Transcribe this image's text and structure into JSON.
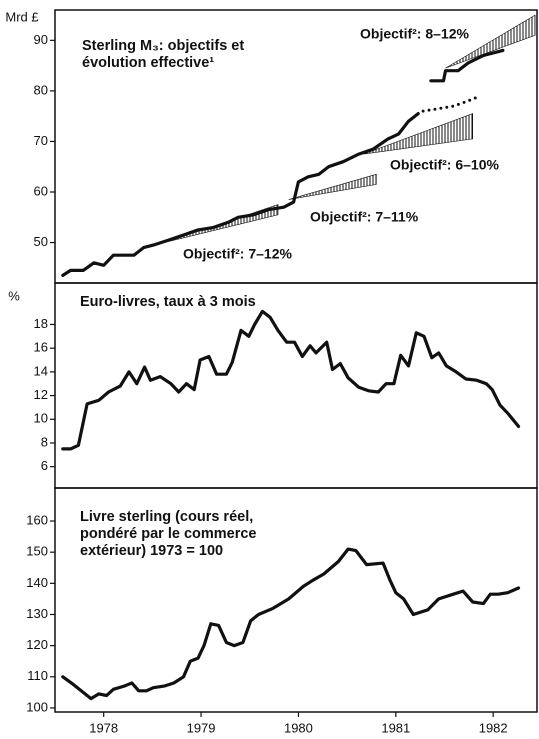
{
  "chart_data": [
    {
      "type": "line",
      "ylabel": "Mrd £",
      "title": [
        "Sterling M₃: objectifs et",
        "évolution effective¹"
      ],
      "xlim": [
        1977.5,
        1982.45
      ],
      "ylim": [
        42,
        96
      ],
      "yticks": [
        50,
        60,
        70,
        80,
        90
      ],
      "series": [
        {
          "color": "#111",
          "style": "solid",
          "x": [
            1977.58,
            1977.66,
            1977.79,
            1977.9,
            1978.0,
            1978.1,
            1978.31,
            1978.41,
            1978.51,
            1978.67,
            1978.82,
            1978.97,
            1979.13,
            1979.28,
            1979.38,
            1979.54,
            1979.69,
            1979.85,
            1979.95,
            1980.0,
            1980.1,
            1980.21,
            1980.31,
            1980.46,
            1980.62,
            1980.77,
            1980.92,
            1981.03,
            1981.13,
            1981.23
          ],
          "values": [
            43.5,
            44.5,
            44.5,
            46,
            45.5,
            47.5,
            47.5,
            49,
            49.5,
            50.5,
            51.5,
            52.5,
            53,
            54,
            55,
            55.5,
            56.5,
            57,
            58,
            62,
            63,
            63.5,
            65,
            66,
            67.5,
            68.5,
            70.5,
            71.5,
            74,
            75.5
          ]
        },
        {
          "color": "#111",
          "style": "dotted",
          "x": [
            1981.28,
            1981.44,
            1981.59,
            1981.74,
            1981.87
          ],
          "values": [
            76,
            76.5,
            77,
            78,
            79
          ]
        },
        {
          "color": "#111",
          "style": "solid",
          "x": [
            1981.36,
            1981.49,
            1981.51,
            1981.64,
            1981.74,
            1981.9,
            1982.1
          ],
          "values": [
            82,
            82,
            84,
            84,
            85.5,
            87,
            88
          ]
        }
      ],
      "bands": [
        {
          "label": "Objectif²: 7–12%",
          "x": [
            1978.62,
            1979.79
          ],
          "lower": [
            50,
            55.5
          ],
          "upper": [
            50,
            57.5
          ]
        },
        {
          "label": "Objectif²: 7–11%",
          "x": [
            1979.9,
            1980.8
          ],
          "lower": [
            58.5,
            61.5
          ],
          "upper": [
            58.5,
            63.5
          ]
        },
        {
          "label": "Objectif²: 6–10%",
          "x": [
            1980.67,
            1981.79
          ],
          "lower": [
            67.5,
            70.5
          ],
          "upper": [
            67.5,
            75.5
          ]
        },
        {
          "label": "Objectif²: 8–12%",
          "x": [
            1981.51,
            1982.43
          ],
          "lower": [
            84.5,
            91
          ],
          "upper": [
            84.5,
            95
          ]
        }
      ]
    },
    {
      "type": "line",
      "ylabel": "%",
      "title": [
        "Euro-livres, taux à 3 mois"
      ],
      "xlim": [
        1977.5,
        1982.45
      ],
      "ylim": [
        4.2,
        21.5
      ],
      "yticks": [
        6,
        8,
        10,
        12,
        14,
        16,
        18
      ],
      "series": [
        {
          "color": "#111",
          "style": "solid",
          "x": [
            1977.58,
            1977.66,
            1977.74,
            1977.83,
            1977.95,
            1978.05,
            1978.17,
            1978.26,
            1978.34,
            1978.42,
            1978.48,
            1978.58,
            1978.69,
            1978.77,
            1978.85,
            1978.93,
            1978.99,
            1979.08,
            1979.16,
            1979.26,
            1979.32,
            1979.41,
            1979.49,
            1979.55,
            1979.63,
            1979.71,
            1979.79,
            1979.88,
            1979.96,
            1980.04,
            1980.12,
            1980.18,
            1980.29,
            1980.35,
            1980.43,
            1980.51,
            1980.62,
            1980.72,
            1980.82,
            1980.9,
            1980.98,
            1981.05,
            1981.13,
            1981.21,
            1981.29,
            1981.37,
            1981.44,
            1981.52,
            1981.62,
            1981.72,
            1981.83,
            1981.93,
            1981.99,
            1982.07,
            1982.15,
            1982.26
          ],
          "values": [
            7.5,
            7.5,
            7.8,
            11.3,
            11.6,
            12.3,
            12.8,
            14,
            13,
            14.4,
            13.3,
            13.6,
            13,
            12.3,
            13,
            12.5,
            15,
            15.3,
            13.8,
            13.8,
            14.8,
            17.5,
            17,
            18,
            19.1,
            18.6,
            17.5,
            16.5,
            16.5,
            15.3,
            16.2,
            15.6,
            16.5,
            14.2,
            14.7,
            13.5,
            12.7,
            12.4,
            12.3,
            13,
            13,
            15.4,
            14.5,
            17.3,
            17,
            15.2,
            15.6,
            14.5,
            14,
            13.4,
            13.3,
            13,
            12.5,
            11.2,
            10.5,
            9.4
          ]
        }
      ]
    },
    {
      "type": "line",
      "title": [
        "Livre sterling (cours réel,",
        "pondéré par le commerce",
        "extérieur)  1973 = 100"
      ],
      "xlim": [
        1977.5,
        1982.45
      ],
      "ylim": [
        98.7,
        170.6
      ],
      "yticks": [
        100,
        110,
        120,
        130,
        140,
        150,
        160
      ],
      "xticks": [
        1978,
        1979,
        1980,
        1981,
        1982
      ],
      "series": [
        {
          "color": "#111",
          "style": "solid",
          "x": [
            1977.58,
            1977.69,
            1977.79,
            1977.87,
            1977.95,
            1978.03,
            1978.1,
            1978.21,
            1978.29,
            1978.36,
            1978.44,
            1978.51,
            1978.62,
            1978.72,
            1978.82,
            1978.89,
            1978.97,
            1979.03,
            1979.1,
            1979.18,
            1979.26,
            1979.34,
            1979.43,
            1979.51,
            1979.59,
            1979.74,
            1979.9,
            1980.05,
            1980.15,
            1980.26,
            1980.41,
            1980.51,
            1980.59,
            1980.7,
            1980.87,
            1980.94,
            1981.0,
            1981.08,
            1981.18,
            1981.33,
            1981.44,
            1981.59,
            1981.69,
            1981.79,
            1981.9,
            1981.97,
            1982.05,
            1982.15,
            1982.26
          ],
          "values": [
            110,
            107.5,
            105,
            103,
            104.5,
            104,
            106,
            107,
            108,
            105.5,
            105.5,
            106.5,
            107,
            108,
            110,
            115,
            116,
            120,
            127,
            126.5,
            121,
            120,
            121,
            128,
            130,
            132,
            135,
            139,
            141,
            143,
            147,
            151,
            150.5,
            146,
            146.5,
            141,
            137,
            135,
            130,
            131.5,
            135,
            136.5,
            137.5,
            134,
            133.5,
            136.5,
            136.5,
            137,
            138.5
          ]
        }
      ]
    }
  ]
}
